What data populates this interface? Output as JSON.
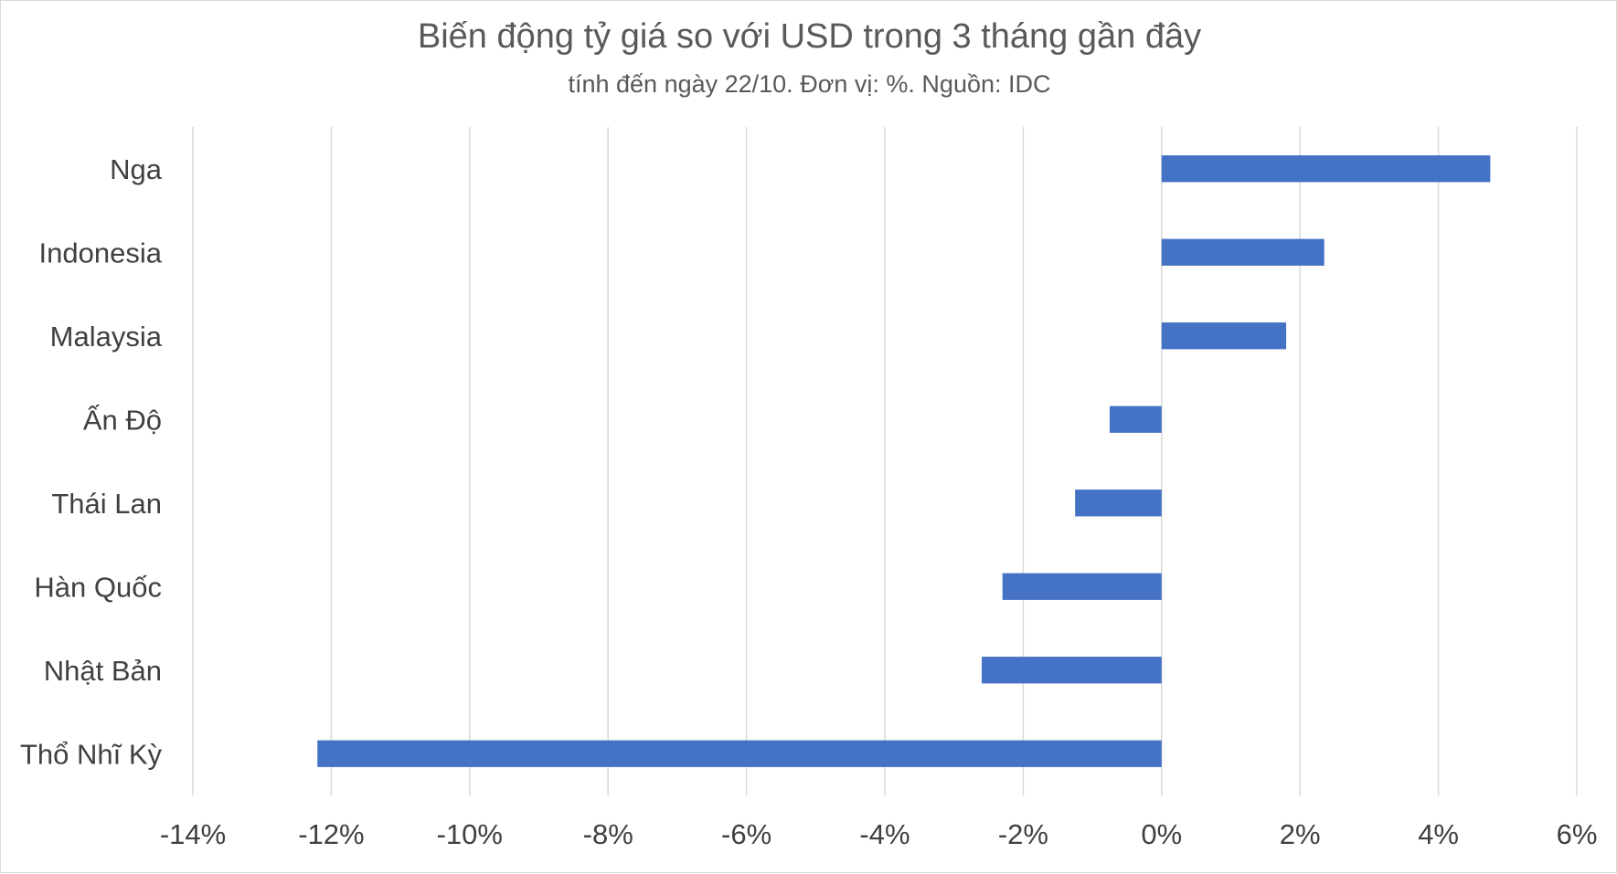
{
  "chart_data": {
    "type": "bar",
    "orientation": "horizontal",
    "title": "Biến động tỷ giá so với USD trong 3 tháng gần đây",
    "subtitle": "tính đến ngày 22/10. Đơn vị: %. Nguồn: IDC",
    "categories": [
      "Nga",
      "Indonesia",
      "Malaysia",
      "Ấn Độ",
      "Thái Lan",
      "Hàn Quốc",
      "Nhật Bản",
      "Thổ Nhĩ Kỳ"
    ],
    "values": [
      4.75,
      2.35,
      1.8,
      -0.75,
      -1.25,
      -2.3,
      -2.6,
      -12.2
    ],
    "xlim": [
      -14,
      6
    ],
    "xticks": [
      -14,
      -12,
      -10,
      -8,
      -6,
      -4,
      -2,
      0,
      2,
      4,
      6
    ],
    "tick_labels": [
      "-14%",
      "-12%",
      "-10%",
      "-8%",
      "-6%",
      "-4%",
      "-2%",
      "0%",
      "2%",
      "4%",
      "6%"
    ],
    "grid": true,
    "bar_color": "#4472c4",
    "grid_color": "#d9d9d9"
  }
}
